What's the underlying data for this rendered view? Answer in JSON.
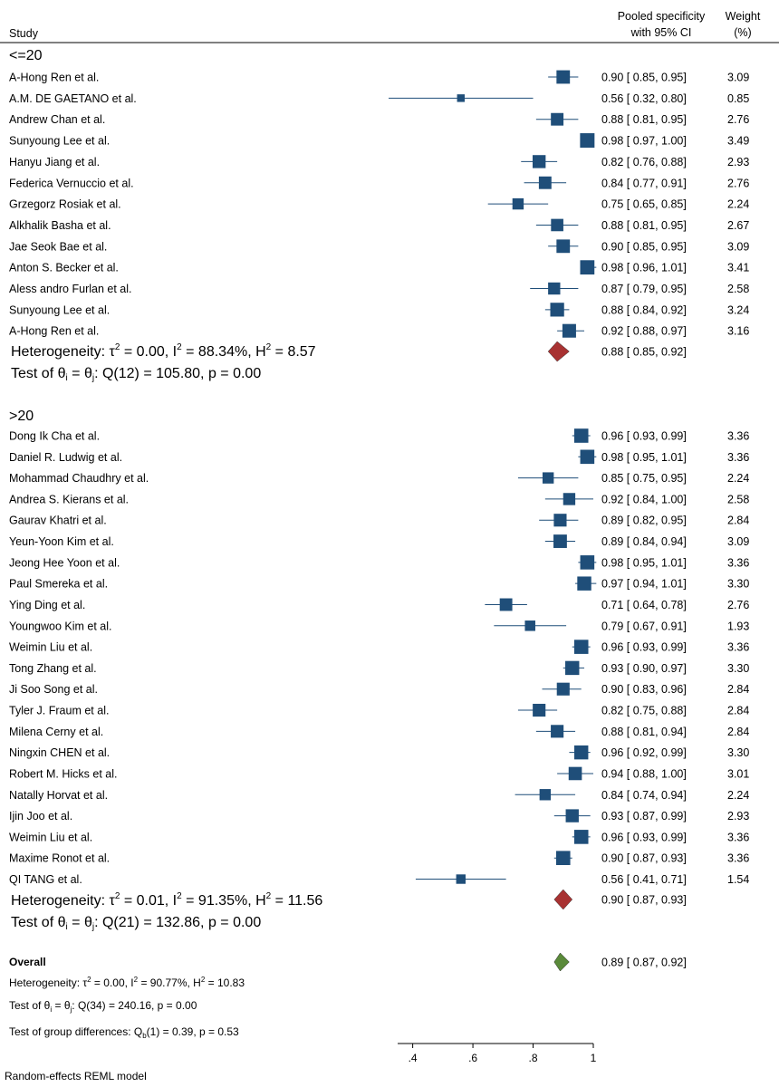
{
  "chart_data": {
    "type": "forest",
    "title": "",
    "columns": {
      "study": "Study",
      "estimate": [
        "Pooled specificity",
        "with 95% CI"
      ],
      "weight": [
        "Weight",
        "(%)"
      ]
    },
    "x_axis": {
      "range": [
        0.35,
        1.0
      ],
      "ticks": [
        0.4,
        0.6,
        0.8,
        1.0
      ],
      "tick_labels": [
        ".4",
        ".6",
        ".8",
        "1"
      ]
    },
    "colors": {
      "study_marker": "#1f4e79",
      "ci_line": "#1f4e79",
      "subgroup_diamond": "#a83232",
      "overall_diamond": "#5a8a3a"
    },
    "groups": [
      {
        "label": "<=20",
        "studies": [
          {
            "name": "A-Hong Ren et al.",
            "est": 0.9,
            "lo": 0.85,
            "hi": 0.95,
            "weight": 3.09,
            "ci_text": "0.90 [  0.85,  0.95]",
            "weight_text": "3.09"
          },
          {
            "name": "A.M. DE GAETANO et al.",
            "est": 0.56,
            "lo": 0.32,
            "hi": 0.8,
            "weight": 0.85,
            "ci_text": "0.56 [  0.32,  0.80]",
            "weight_text": "0.85"
          },
          {
            "name": "Andrew Chan et al.",
            "est": 0.88,
            "lo": 0.81,
            "hi": 0.95,
            "weight": 2.76,
            "ci_text": "0.88 [  0.81,  0.95]",
            "weight_text": "2.76"
          },
          {
            "name": "Sunyoung Lee et al.",
            "est": 0.98,
            "lo": 0.97,
            "hi": 1.0,
            "weight": 3.49,
            "ci_text": "0.98 [  0.97,  1.00]",
            "weight_text": "3.49"
          },
          {
            "name": "Hanyu Jiang et al.",
            "est": 0.82,
            "lo": 0.76,
            "hi": 0.88,
            "weight": 2.93,
            "ci_text": "0.82 [  0.76,  0.88]",
            "weight_text": "2.93"
          },
          {
            "name": "Federica Vernuccio et al.",
            "est": 0.84,
            "lo": 0.77,
            "hi": 0.91,
            "weight": 2.76,
            "ci_text": "0.84 [  0.77,  0.91]",
            "weight_text": "2.76"
          },
          {
            "name": "Grzegorz Rosiak et al.",
            "est": 0.75,
            "lo": 0.65,
            "hi": 0.85,
            "weight": 2.24,
            "ci_text": "0.75 [  0.65,  0.85]",
            "weight_text": "2.24"
          },
          {
            "name": "Alkhalik Basha et al.",
            "est": 0.88,
            "lo": 0.81,
            "hi": 0.95,
            "weight": 2.67,
            "ci_text": "0.88 [  0.81,  0.95]",
            "weight_text": "2.67"
          },
          {
            "name": "Jae Seok Bae et al.",
            "est": 0.9,
            "lo": 0.85,
            "hi": 0.95,
            "weight": 3.09,
            "ci_text": "0.90 [  0.85,  0.95]",
            "weight_text": "3.09"
          },
          {
            "name": "Anton S. Becker et al.",
            "est": 0.98,
            "lo": 0.96,
            "hi": 1.01,
            "weight": 3.41,
            "ci_text": "0.98 [  0.96,  1.01]",
            "weight_text": "3.41"
          },
          {
            "name": "Aless andro Furlan et al.",
            "est": 0.87,
            "lo": 0.79,
            "hi": 0.95,
            "weight": 2.58,
            "ci_text": "0.87 [  0.79,  0.95]",
            "weight_text": "2.58"
          },
          {
            "name": "Sunyoung Lee et al.",
            "est": 0.88,
            "lo": 0.84,
            "hi": 0.92,
            "weight": 3.24,
            "ci_text": "0.88 [  0.84,  0.92]",
            "weight_text": "3.24"
          },
          {
            "name": "A-Hong Ren et al.",
            "est": 0.92,
            "lo": 0.88,
            "hi": 0.97,
            "weight": 3.16,
            "ci_text": "0.92 [  0.88,  0.97]",
            "weight_text": "3.16"
          }
        ],
        "pooled": {
          "est": 0.88,
          "lo": 0.85,
          "hi": 0.92,
          "ci_text": "0.88 [  0.85,  0.92]"
        },
        "heterogeneity": {
          "prefix": "Heterogeneity: ",
          "tau2": "0.00",
          "i2": "88.34%",
          "h2": "8.57"
        },
        "test": {
          "q": "Q(12) = 105.80, p = 0.00"
        }
      },
      {
        "label": ">20",
        "studies": [
          {
            "name": "Dong Ik Cha et al.",
            "est": 0.96,
            "lo": 0.93,
            "hi": 0.99,
            "weight": 3.36,
            "ci_text": "0.96 [  0.93,  0.99]",
            "weight_text": "3.36"
          },
          {
            "name": "Daniel R. Ludwig et al.",
            "est": 0.98,
            "lo": 0.95,
            "hi": 1.01,
            "weight": 3.36,
            "ci_text": "0.98 [  0.95,  1.01]",
            "weight_text": "3.36"
          },
          {
            "name": "Mohammad Chaudhry et al.",
            "est": 0.85,
            "lo": 0.75,
            "hi": 0.95,
            "weight": 2.24,
            "ci_text": "0.85 [  0.75,  0.95]",
            "weight_text": "2.24"
          },
          {
            "name": "Andrea S. Kierans et al.",
            "est": 0.92,
            "lo": 0.84,
            "hi": 1.0,
            "weight": 2.58,
            "ci_text": "0.92 [  0.84,  1.00]",
            "weight_text": "2.58"
          },
          {
            "name": "Gaurav Khatri et al.",
            "est": 0.89,
            "lo": 0.82,
            "hi": 0.95,
            "weight": 2.84,
            "ci_text": "0.89 [  0.82,  0.95]",
            "weight_text": "2.84"
          },
          {
            "name": "Yeun-Yoon Kim et al.",
            "est": 0.89,
            "lo": 0.84,
            "hi": 0.94,
            "weight": 3.09,
            "ci_text": "0.89 [  0.84,  0.94]",
            "weight_text": "3.09"
          },
          {
            "name": "Jeong Hee Yoon et al.",
            "est": 0.98,
            "lo": 0.95,
            "hi": 1.01,
            "weight": 3.36,
            "ci_text": "0.98 [  0.95,  1.01]",
            "weight_text": "3.36"
          },
          {
            "name": "Paul Smereka et al.",
            "est": 0.97,
            "lo": 0.94,
            "hi": 1.01,
            "weight": 3.3,
            "ci_text": "0.97 [  0.94,  1.01]",
            "weight_text": "3.30"
          },
          {
            "name": "Ying Ding et al.",
            "est": 0.71,
            "lo": 0.64,
            "hi": 0.78,
            "weight": 2.76,
            "ci_text": "0.71 [  0.64,  0.78]",
            "weight_text": "2.76"
          },
          {
            "name": "Youngwoo Kim et al.",
            "est": 0.79,
            "lo": 0.67,
            "hi": 0.91,
            "weight": 1.93,
            "ci_text": "0.79 [  0.67,  0.91]",
            "weight_text": "1.93"
          },
          {
            "name": "Weimin Liu et al.",
            "est": 0.96,
            "lo": 0.93,
            "hi": 0.99,
            "weight": 3.36,
            "ci_text": "0.96 [  0.93,  0.99]",
            "weight_text": "3.36"
          },
          {
            "name": "Tong Zhang et al.",
            "est": 0.93,
            "lo": 0.9,
            "hi": 0.97,
            "weight": 3.3,
            "ci_text": "0.93 [  0.90,  0.97]",
            "weight_text": "3.30"
          },
          {
            "name": "Ji Soo Song et al.",
            "est": 0.9,
            "lo": 0.83,
            "hi": 0.96,
            "weight": 2.84,
            "ci_text": "0.90 [  0.83,  0.96]",
            "weight_text": "2.84"
          },
          {
            "name": "Tyler J. Fraum et al.",
            "est": 0.82,
            "lo": 0.75,
            "hi": 0.88,
            "weight": 2.84,
            "ci_text": "0.82 [  0.75,  0.88]",
            "weight_text": "2.84"
          },
          {
            "name": "Milena Cerny et al.",
            "est": 0.88,
            "lo": 0.81,
            "hi": 0.94,
            "weight": 2.84,
            "ci_text": "0.88 [  0.81,  0.94]",
            "weight_text": "2.84"
          },
          {
            "name": "Ningxin CHEN et al.",
            "est": 0.96,
            "lo": 0.92,
            "hi": 0.99,
            "weight": 3.3,
            "ci_text": "0.96 [  0.92,  0.99]",
            "weight_text": "3.30"
          },
          {
            "name": "Robert M. Hicks et al.",
            "est": 0.94,
            "lo": 0.88,
            "hi": 1.0,
            "weight": 3.01,
            "ci_text": "0.94 [  0.88,  1.00]",
            "weight_text": "3.01"
          },
          {
            "name": "Natally Horvat et al.",
            "est": 0.84,
            "lo": 0.74,
            "hi": 0.94,
            "weight": 2.24,
            "ci_text": "0.84 [  0.74,  0.94]",
            "weight_text": "2.24"
          },
          {
            "name": "Ijin Joo et al.",
            "est": 0.93,
            "lo": 0.87,
            "hi": 0.99,
            "weight": 2.93,
            "ci_text": "0.93 [  0.87,  0.99]",
            "weight_text": "2.93"
          },
          {
            "name": "Weimin Liu et al.",
            "est": 0.96,
            "lo": 0.93,
            "hi": 0.99,
            "weight": 3.36,
            "ci_text": "0.96 [  0.93,  0.99]",
            "weight_text": "3.36"
          },
          {
            "name": "Maxime Ronot et al.",
            "est": 0.9,
            "lo": 0.87,
            "hi": 0.93,
            "weight": 3.36,
            "ci_text": "0.90 [  0.87,  0.93]",
            "weight_text": "3.36"
          },
          {
            "name": "QI TANG et al.",
            "est": 0.56,
            "lo": 0.41,
            "hi": 0.71,
            "weight": 1.54,
            "ci_text": "0.56 [  0.41,  0.71]",
            "weight_text": "1.54"
          }
        ],
        "pooled": {
          "est": 0.9,
          "lo": 0.87,
          "hi": 0.93,
          "ci_text": "0.90 [  0.87,  0.93]"
        },
        "heterogeneity": {
          "prefix": "Heterogeneity: ",
          "tau2": "0.01",
          "i2": "91.35%",
          "h2": "11.56"
        },
        "test": {
          "q": "Q(21) = 132.86, p = 0.00"
        }
      }
    ],
    "overall": {
      "label": "Overall",
      "est": 0.89,
      "lo": 0.87,
      "hi": 0.92,
      "ci_text": "0.89 [  0.87,  0.92]",
      "heterogeneity": {
        "prefix": "Heterogeneity: ",
        "tau2": "0.00",
        "i2": "90.77%",
        "h2": "10.83"
      },
      "test": {
        "q": "Q(34) = 240.16, p = 0.00"
      },
      "group_diff": {
        "prefix": "Test of group differences: Q",
        "sub": "b",
        "rest": "(1) = 0.39, p = 0.53"
      }
    },
    "footnote": "Random-effects REML model"
  }
}
